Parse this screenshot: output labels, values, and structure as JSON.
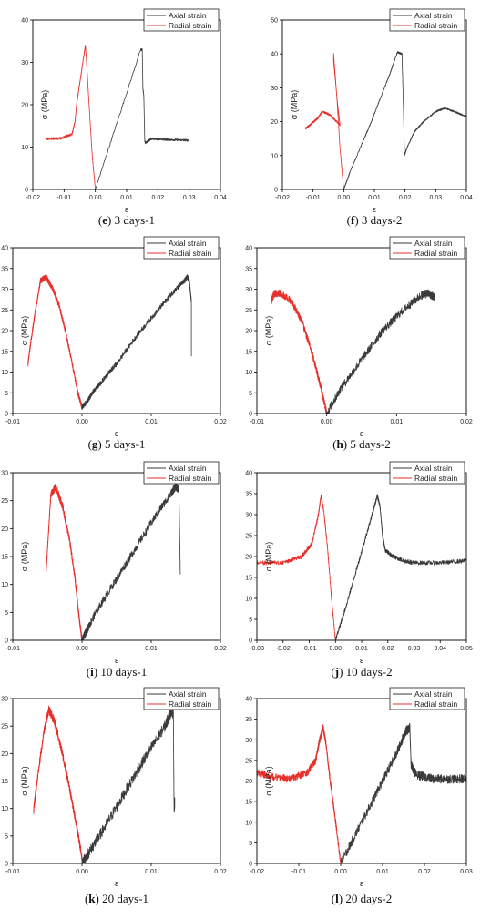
{
  "legend": {
    "axial_label": "Axial strain",
    "radial_label": "Radial strain"
  },
  "colors": {
    "axial": "#3a3a3a",
    "radial": "#e8302b",
    "frame": "#000000"
  },
  "chart_data": [
    {
      "type": "line",
      "caption": {
        "letter": "e",
        "text": "3 days-1"
      },
      "xlabel": "ε",
      "ylabel": "σ (MPa)",
      "xlim": [
        -0.02,
        0.04
      ],
      "ylim": [
        0,
        40
      ],
      "xticks": [
        -0.02,
        -0.01,
        0.0,
        0.01,
        0.02,
        0.03,
        0.04
      ],
      "xtick_labels": [
        "-0.02",
        "-0.01",
        "0.00",
        "0.01",
        "0.02",
        "0.03",
        "0.04"
      ],
      "yticks": [
        0,
        10,
        20,
        30,
        40
      ],
      "series": [
        {
          "name": "Axial strain",
          "noise": 0.25,
          "points": [
            [
              0,
              0
            ],
            [
              0.0145,
              33
            ],
            [
              0.015,
              33
            ],
            [
              0.0152,
              24
            ],
            [
              0.0155,
              22
            ],
            [
              0.0158,
              11.5
            ],
            [
              0.016,
              11
            ],
            [
              0.018,
              12
            ],
            [
              0.022,
              11.8
            ],
            [
              0.026,
              11.7
            ],
            [
              0.03,
              11.6
            ]
          ]
        },
        {
          "name": "Radial strain",
          "noise": 0.3,
          "points": [
            [
              0,
              0
            ],
            [
              -0.001,
              8
            ],
            [
              -0.002,
              20
            ],
            [
              -0.0028,
              30
            ],
            [
              -0.0032,
              34
            ],
            [
              -0.004,
              30
            ],
            [
              -0.005,
              25
            ],
            [
              -0.006,
              20
            ],
            [
              -0.0065,
              16
            ],
            [
              -0.0075,
              13
            ],
            [
              -0.0115,
              12
            ],
            [
              -0.016,
              12
            ]
          ]
        }
      ]
    },
    {
      "type": "line",
      "caption": {
        "letter": "f",
        "text": "3 days-2"
      },
      "xlabel": "ε",
      "ylabel": "σ (MPa)",
      "xlim": [
        -0.02,
        0.04
      ],
      "ylim": [
        0,
        50
      ],
      "xticks": [
        -0.02,
        -0.01,
        0.0,
        0.01,
        0.02,
        0.03,
        0.04
      ],
      "xtick_labels": [
        "-0.02",
        "-0.01",
        "0.00",
        "0.01",
        "0.02",
        "0.03",
        "0.04"
      ],
      "yticks": [
        0,
        10,
        20,
        30,
        40,
        50
      ],
      "series": [
        {
          "name": "Axial strain",
          "noise": 0.25,
          "points": [
            [
              0,
              0
            ],
            [
              0.002,
              5
            ],
            [
              0.009,
              20
            ],
            [
              0.015,
              34
            ],
            [
              0.0175,
              40.5
            ],
            [
              0.019,
              40
            ],
            [
              0.0195,
              23
            ],
            [
              0.0198,
              10
            ],
            [
              0.0205,
              12
            ],
            [
              0.023,
              17
            ],
            [
              0.026,
              20
            ],
            [
              0.03,
              23
            ],
            [
              0.033,
              24
            ],
            [
              0.036,
              23
            ],
            [
              0.04,
              21.5
            ]
          ]
        },
        {
          "name": "Radial strain",
          "noise": 0.3,
          "points": [
            [
              0,
              0
            ],
            [
              -0.0012,
              12
            ],
            [
              -0.0023,
              28
            ],
            [
              -0.0033,
              40
            ],
            [
              -0.0033,
              38
            ],
            [
              -0.002,
              25
            ],
            [
              -0.0012,
              19
            ],
            [
              -0.0045,
              22
            ],
            [
              -0.007,
              23
            ],
            [
              -0.0085,
              21
            ],
            [
              -0.011,
              19
            ],
            [
              -0.0125,
              18
            ]
          ]
        }
      ]
    },
    {
      "type": "line",
      "caption": {
        "letter": "g",
        "text": "5 days-1"
      },
      "xlabel": "ε",
      "ylabel": "σ (MPa)",
      "xlim": [
        -0.01,
        0.02
      ],
      "ylim": [
        0,
        40
      ],
      "xticks": [
        -0.01,
        0.0,
        0.01,
        0.02
      ],
      "xtick_labels": [
        "-0.01",
        "0.00",
        "0.01",
        "0.02"
      ],
      "yticks": [
        0,
        5,
        10,
        15,
        20,
        25,
        30,
        35,
        40
      ],
      "series": [
        {
          "name": "Axial strain",
          "noise": 0.6,
          "points": [
            [
              0,
              1.5
            ],
            [
              0.0008,
              3
            ],
            [
              0.0015,
              5
            ],
            [
              0.003,
              8
            ],
            [
              0.005,
              12
            ],
            [
              0.008,
              19
            ],
            [
              0.011,
              25
            ],
            [
              0.013,
              29
            ],
            [
              0.0148,
              32
            ],
            [
              0.0152,
              33
            ],
            [
              0.0155,
              32
            ],
            [
              0.0158,
              27
            ],
            [
              0.0158,
              14
            ]
          ]
        },
        {
          "name": "Radial strain",
          "noise": 0.7,
          "points": [
            [
              0,
              1.5
            ],
            [
              -0.0006,
              5
            ],
            [
              -0.0014,
              12
            ],
            [
              -0.0024,
              20
            ],
            [
              -0.0033,
              26
            ],
            [
              -0.0042,
              30
            ],
            [
              -0.0052,
              33
            ],
            [
              -0.006,
              32
            ],
            [
              -0.0068,
              24
            ],
            [
              -0.0075,
              16
            ],
            [
              -0.0078,
              12
            ]
          ]
        }
      ]
    },
    {
      "type": "line",
      "caption": {
        "letter": "h",
        "text": "5 days-2"
      },
      "xlabel": "ε",
      "ylabel": "σ (MPa)",
      "xlim": [
        -0.01,
        0.02
      ],
      "ylim": [
        0,
        40
      ],
      "xticks": [
        -0.01,
        0.0,
        0.01,
        0.02
      ],
      "xtick_labels": [
        "-0.01",
        "0.00",
        "0.01",
        "0.02"
      ],
      "yticks": [
        0,
        5,
        10,
        15,
        20,
        25,
        30,
        35,
        40
      ],
      "series": [
        {
          "name": "Axial strain",
          "noise": 1.0,
          "points": [
            [
              0,
              0
            ],
            [
              0.002,
              6
            ],
            [
              0.005,
              13
            ],
            [
              0.008,
              20
            ],
            [
              0.011,
              25
            ],
            [
              0.0135,
              28.5
            ],
            [
              0.0145,
              29
            ],
            [
              0.0155,
              28
            ],
            [
              0.0155,
              26.5
            ]
          ]
        },
        {
          "name": "Radial strain",
          "noise": 0.9,
          "points": [
            [
              0,
              0
            ],
            [
              -0.0008,
              6
            ],
            [
              -0.002,
              14
            ],
            [
              -0.0035,
              22
            ],
            [
              -0.005,
              27
            ],
            [
              -0.0065,
              29
            ],
            [
              -0.0075,
              29
            ],
            [
              -0.008,
              27
            ]
          ]
        }
      ]
    },
    {
      "type": "line",
      "caption": {
        "letter": "i",
        "text": "10 days-1"
      },
      "xlabel": "ε",
      "ylabel": "σ (MPa)",
      "xlim": [
        -0.01,
        0.02
      ],
      "ylim": [
        0,
        30
      ],
      "xticks": [
        -0.01,
        0.0,
        0.01,
        0.02
      ],
      "xtick_labels": [
        "-0.01",
        "0.00",
        "0.01",
        "0.02"
      ],
      "yticks": [
        0,
        5,
        10,
        15,
        20,
        25,
        30
      ],
      "series": [
        {
          "name": "Axial strain",
          "noise": 0.7,
          "points": [
            [
              0,
              0
            ],
            [
              0.0006,
              1.5
            ],
            [
              0.002,
              5
            ],
            [
              0.005,
              11
            ],
            [
              0.008,
              17
            ],
            [
              0.011,
              23
            ],
            [
              0.013,
              26.5
            ],
            [
              0.0135,
              27.5
            ],
            [
              0.014,
              27
            ],
            [
              0.0142,
              12
            ]
          ]
        },
        {
          "name": "Radial strain",
          "noise": 0.7,
          "points": [
            [
              0,
              0
            ],
            [
              -0.0005,
              5
            ],
            [
              -0.001,
              11
            ],
            [
              -0.0018,
              18
            ],
            [
              -0.0028,
              24
            ],
            [
              -0.0038,
              27.5
            ],
            [
              -0.0045,
              26
            ],
            [
              -0.0048,
              20
            ],
            [
              -0.0052,
              12
            ]
          ]
        }
      ]
    },
    {
      "type": "line",
      "caption": {
        "letter": "j",
        "text": "10 days-2"
      },
      "xlabel": "ε",
      "ylabel": "σ (MPa)",
      "xlim": [
        -0.03,
        0.05
      ],
      "ylim": [
        0,
        40
      ],
      "xticks": [
        -0.03,
        -0.02,
        -0.01,
        0.0,
        0.01,
        0.02,
        0.03,
        0.04,
        0.05
      ],
      "xtick_labels": [
        "-0.03",
        "-0.02",
        "-0.01",
        "0.00",
        "0.01",
        "0.02",
        "0.03",
        "0.04",
        "0.05"
      ],
      "yticks": [
        0,
        5,
        10,
        15,
        20,
        25,
        30,
        35,
        40
      ],
      "series": [
        {
          "name": "Axial strain",
          "noise": 0.5,
          "points": [
            [
              0,
              0
            ],
            [
              0.004,
              8
            ],
            [
              0.009,
              19
            ],
            [
              0.014,
              30
            ],
            [
              0.016,
              34.5
            ],
            [
              0.017,
              32
            ],
            [
              0.018,
              25
            ],
            [
              0.019,
              21.5
            ],
            [
              0.022,
              20
            ],
            [
              0.026,
              19
            ],
            [
              0.03,
              18.5
            ],
            [
              0.04,
              18.5
            ],
            [
              0.05,
              19
            ]
          ]
        },
        {
          "name": "Radial strain",
          "noise": 0.5,
          "points": [
            [
              0,
              0
            ],
            [
              -0.0015,
              10
            ],
            [
              -0.003,
              22
            ],
            [
              -0.0045,
              31
            ],
            [
              -0.0055,
              34.5
            ],
            [
              -0.0065,
              30
            ],
            [
              -0.009,
              23
            ],
            [
              -0.013,
              20
            ],
            [
              -0.02,
              18.5
            ],
            [
              -0.03,
              18.5
            ]
          ]
        }
      ]
    },
    {
      "type": "line",
      "caption": {
        "letter": "k",
        "text": "20 days-1"
      },
      "xlabel": "ε",
      "ylabel": "σ (MPa)",
      "xlim": [
        -0.01,
        0.02
      ],
      "ylim": [
        0,
        30
      ],
      "xticks": [
        -0.01,
        0.0,
        0.01,
        0.02
      ],
      "xtick_labels": [
        "-0.01",
        "0.00",
        "0.01",
        "0.02"
      ],
      "yticks": [
        0,
        5,
        10,
        15,
        20,
        25,
        30
      ],
      "series": [
        {
          "name": "Axial strain",
          "noise": 1.0,
          "points": [
            [
              0,
              0
            ],
            [
              0.001,
              2
            ],
            [
              0.003,
              6
            ],
            [
              0.006,
              12.5
            ],
            [
              0.009,
              19
            ],
            [
              0.012,
              25
            ],
            [
              0.013,
              28
            ],
            [
              0.0132,
              27
            ],
            [
              0.0133,
              10
            ],
            [
              0.0134,
              11
            ]
          ]
        },
        {
          "name": "Radial strain",
          "noise": 0.8,
          "points": [
            [
              0,
              1
            ],
            [
              -0.0008,
              7
            ],
            [
              -0.002,
              15
            ],
            [
              -0.003,
              21
            ],
            [
              -0.004,
              26
            ],
            [
              -0.0048,
              28
            ],
            [
              -0.0055,
              24
            ],
            [
              -0.0065,
              15
            ],
            [
              -0.007,
              9.5
            ]
          ]
        }
      ]
    },
    {
      "type": "line",
      "caption": {
        "letter": "l",
        "text": "20 days-2"
      },
      "xlabel": "ε",
      "ylabel": "σ (MPa)",
      "xlim": [
        -0.02,
        0.03
      ],
      "ylim": [
        0,
        40
      ],
      "xticks": [
        -0.02,
        -0.01,
        0.0,
        0.01,
        0.02,
        0.03
      ],
      "xtick_labels": [
        "-0.02",
        "-0.01",
        "0.00",
        "0.01",
        "0.02",
        "0.03"
      ],
      "yticks": [
        0,
        5,
        10,
        15,
        20,
        25,
        30,
        35,
        40
      ],
      "series": [
        {
          "name": "Axial strain",
          "noise": 1.1,
          "points": [
            [
              0,
              0
            ],
            [
              0.004,
              8
            ],
            [
              0.009,
              18
            ],
            [
              0.013,
              26
            ],
            [
              0.0155,
              32
            ],
            [
              0.0165,
              33
            ],
            [
              0.0168,
              24
            ],
            [
              0.018,
              21.5
            ],
            [
              0.022,
              20.5
            ],
            [
              0.026,
              20.5
            ],
            [
              0.03,
              20.5
            ]
          ]
        },
        {
          "name": "Radial strain",
          "noise": 0.9,
          "points": [
            [
              0,
              0
            ],
            [
              -0.0012,
              10
            ],
            [
              -0.0025,
              20
            ],
            [
              -0.0035,
              29
            ],
            [
              -0.0042,
              33
            ],
            [
              -0.005,
              30
            ],
            [
              -0.006,
              25
            ],
            [
              -0.008,
              22
            ],
            [
              -0.012,
              20.5
            ],
            [
              -0.016,
              21
            ],
            [
              -0.02,
              22
            ]
          ]
        }
      ]
    }
  ]
}
